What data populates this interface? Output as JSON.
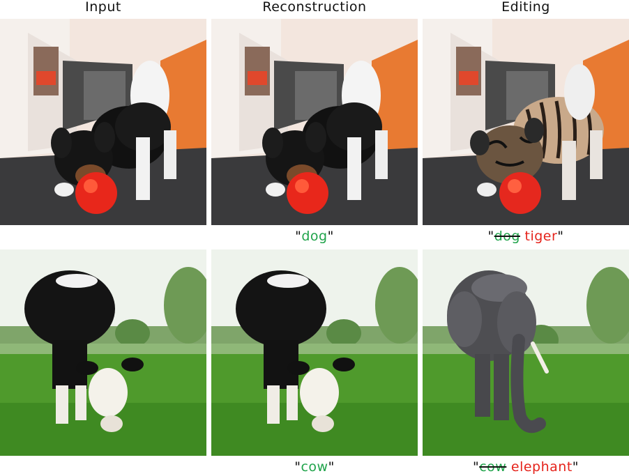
{
  "headers": {
    "input": "Input",
    "reconstruction": "Reconstruction",
    "editing": "Editing"
  },
  "rows": [
    {
      "reconstruction_caption": {
        "open": "\"",
        "word": "dog",
        "close": "\""
      },
      "editing_caption": {
        "open": "\"",
        "source": "dog",
        "target": "tiger",
        "close": "\""
      }
    },
    {
      "reconstruction_caption": {
        "open": "\"",
        "word": "cow",
        "close": "\""
      },
      "editing_caption": {
        "open": "\"",
        "source": "cow",
        "target": "elephant",
        "close": "\""
      }
    }
  ],
  "colors": {
    "source_word": "#1fa34a",
    "target_word": "#e5231b"
  }
}
